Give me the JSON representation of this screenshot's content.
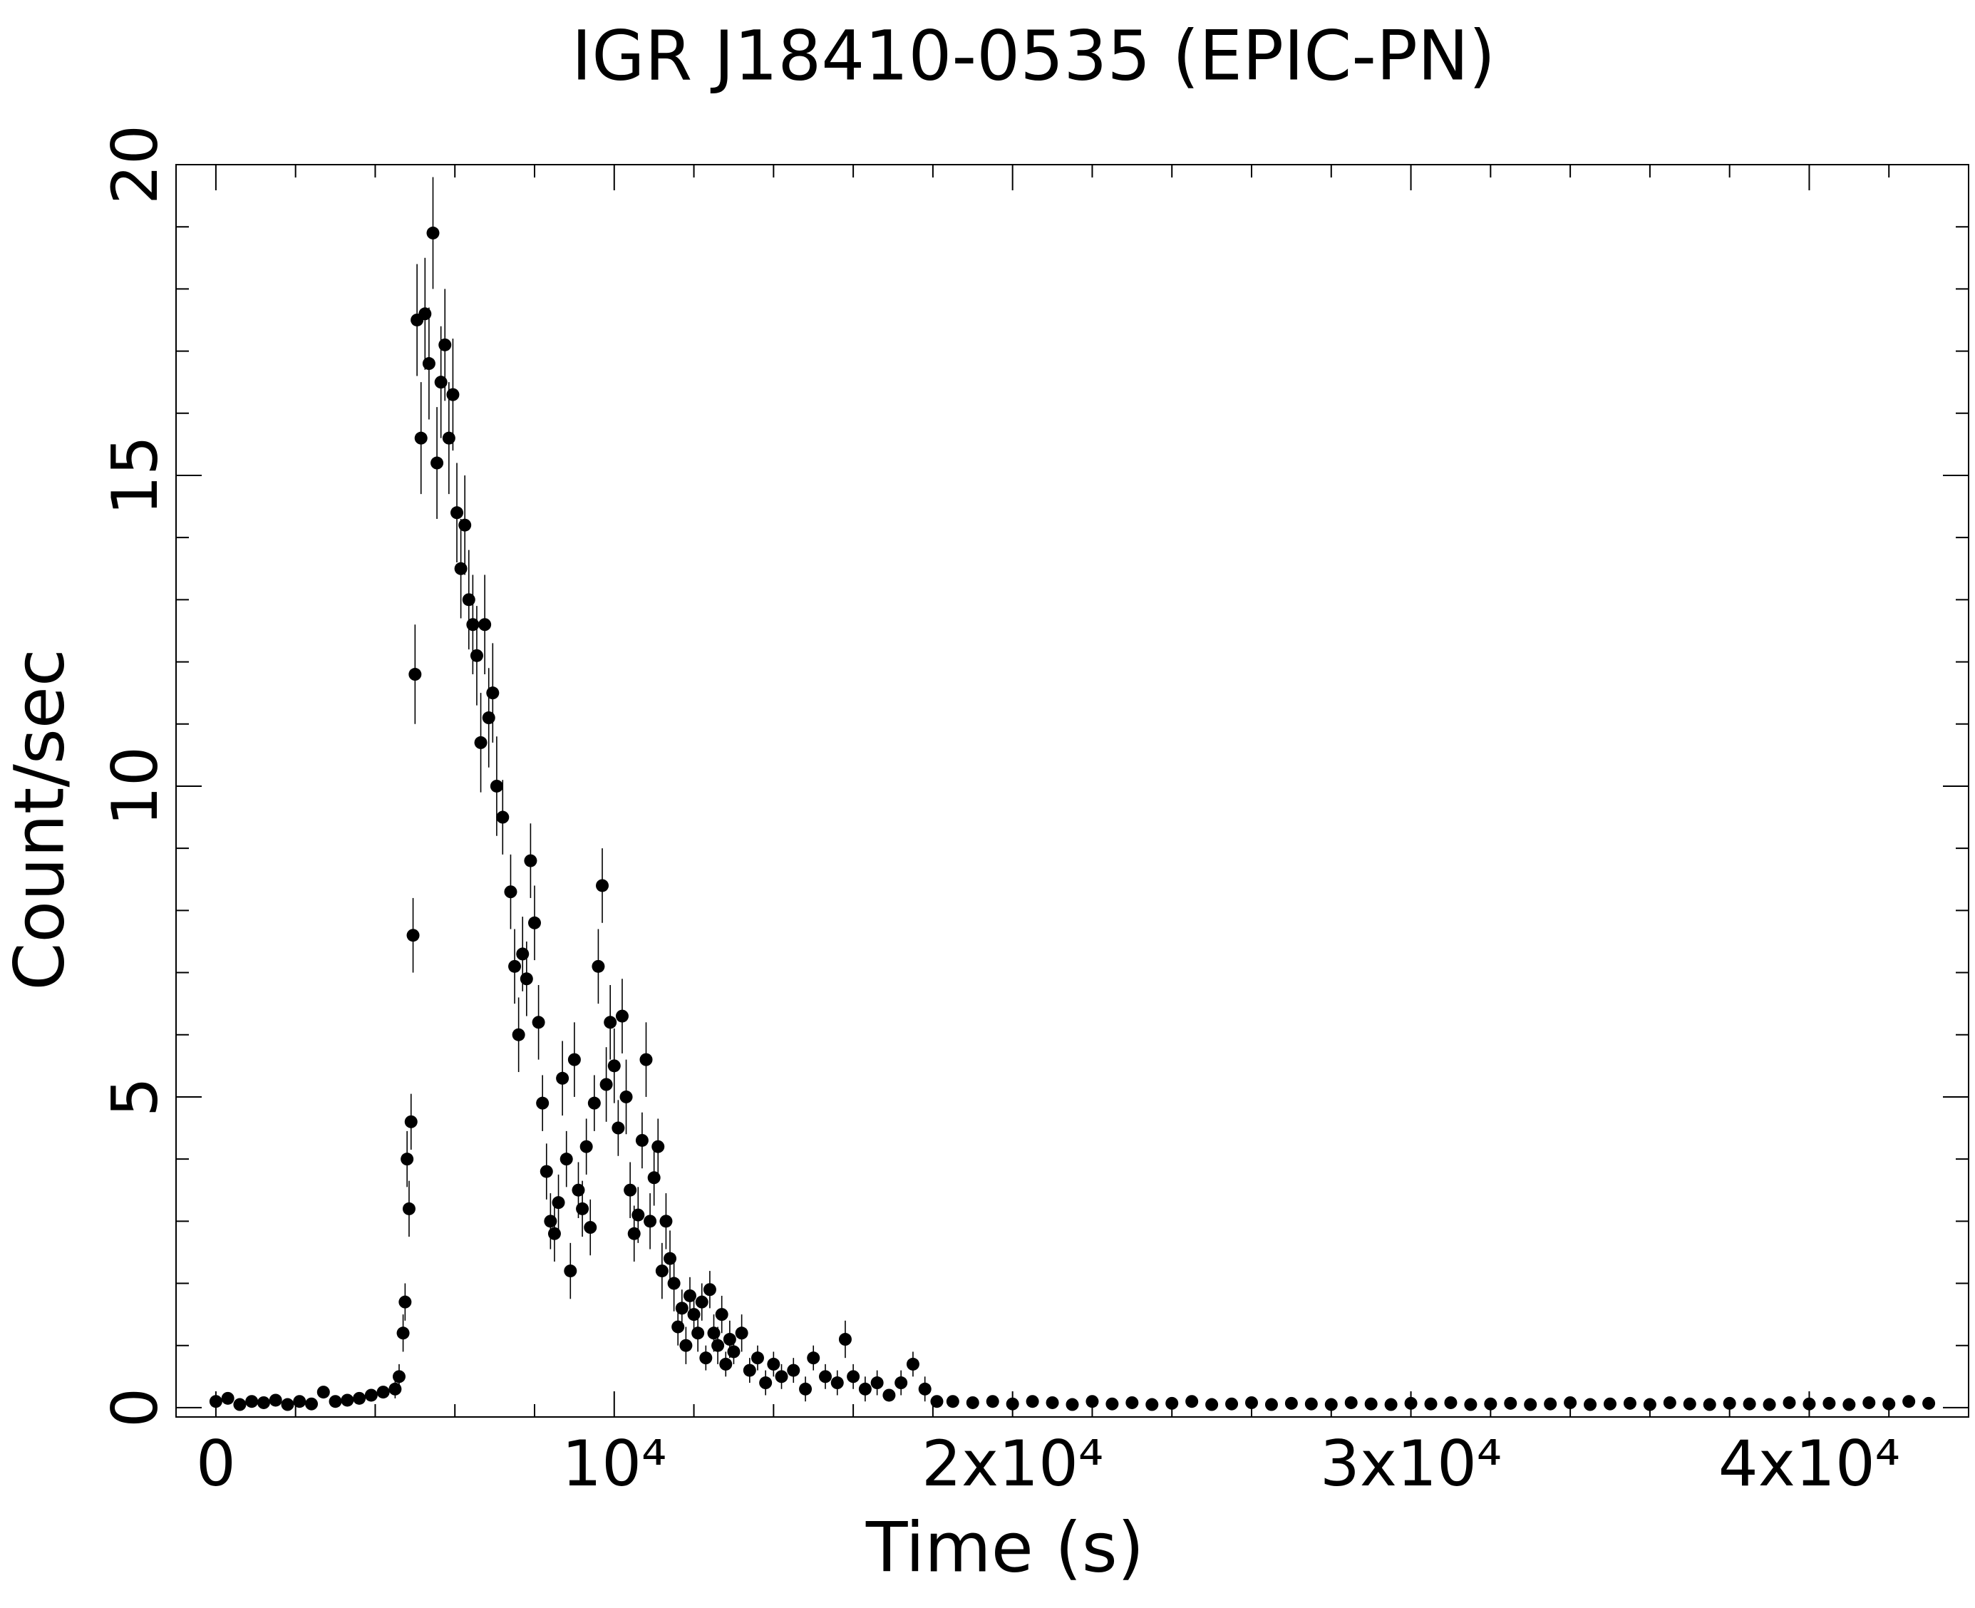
{
  "chart_data": {
    "type": "scatter",
    "title": "IGR J18410-0535 (EPIC-PN)",
    "xlabel": "Time (s)",
    "ylabel": "Count/sec",
    "color": "#000000",
    "xlim": [
      -1000,
      44000
    ],
    "ylim": [
      -0.15,
      20
    ],
    "xticks": [
      0,
      {
        "value": 10000,
        "label": "10⁴"
      },
      {
        "value": 20000,
        "label": "2x10⁴"
      },
      {
        "value": 30000,
        "label": "3x10⁴"
      },
      {
        "value": 40000,
        "label": "4x10⁴"
      }
    ],
    "yticks": [
      0,
      5,
      10,
      15,
      20
    ],
    "xminorticks": [
      2000,
      4000,
      6000,
      8000,
      12000,
      14000,
      16000,
      18000,
      22000,
      24000,
      26000,
      28000,
      32000,
      34000,
      36000,
      38000,
      42000
    ],
    "yminorticks": [
      1,
      2,
      3,
      4,
      6,
      7,
      8,
      9,
      11,
      12,
      13,
      14,
      16,
      17,
      18,
      19
    ],
    "x": [
      0,
      300,
      600,
      900,
      1200,
      1500,
      1800,
      2100,
      2400,
      2700,
      3000,
      3300,
      3600,
      3900,
      4200,
      4500,
      4600,
      4700,
      4750,
      4800,
      4850,
      4900,
      4950,
      5000,
      5050,
      5150,
      5250,
      5350,
      5450,
      5550,
      5650,
      5750,
      5850,
      5950,
      6050,
      6150,
      6250,
      6350,
      6450,
      6550,
      6650,
      6750,
      6850,
      6950,
      7050,
      7200,
      7400,
      7500,
      7600,
      7700,
      7800,
      7900,
      8000,
      8100,
      8200,
      8300,
      8400,
      8500,
      8600,
      8700,
      8800,
      8900,
      9000,
      9100,
      9200,
      9300,
      9400,
      9500,
      9600,
      9700,
      9800,
      9900,
      10000,
      10100,
      10200,
      10300,
      10400,
      10500,
      10600,
      10700,
      10800,
      10900,
      11000,
      11100,
      11200,
      11300,
      11400,
      11500,
      11600,
      11700,
      11800,
      11900,
      12000,
      12100,
      12200,
      12300,
      12400,
      12500,
      12600,
      12700,
      12800,
      12900,
      13000,
      13200,
      13400,
      13600,
      13800,
      14000,
      14200,
      14500,
      14800,
      15000,
      15300,
      15600,
      15800,
      16000,
      16300,
      16600,
      16900,
      17200,
      17500,
      17800,
      18100,
      18500,
      19000,
      19500,
      20000,
      20500,
      21000,
      21500,
      22000,
      22500,
      23000,
      23500,
      24000,
      24500,
      25000,
      25500,
      26000,
      26500,
      27000,
      27500,
      28000,
      28500,
      29000,
      29500,
      30000,
      30500,
      31000,
      31500,
      32000,
      32500,
      33000,
      33500,
      34000,
      34500,
      35000,
      35500,
      36000,
      36500,
      37000,
      37500,
      38000,
      38500,
      39000,
      39500,
      40000,
      40500,
      41000,
      41500,
      42000,
      42500,
      43000
    ],
    "values": [
      0.1,
      0.15,
      0.05,
      0.1,
      0.08,
      0.12,
      0.05,
      0.1,
      0.06,
      0.25,
      0.1,
      0.12,
      0.15,
      0.2,
      0.25,
      0.3,
      0.5,
      1.2,
      1.7,
      4.0,
      3.2,
      4.6,
      7.6,
      11.8,
      17.5,
      15.6,
      17.6,
      16.8,
      18.9,
      15.2,
      16.5,
      17.1,
      15.6,
      16.3,
      14.4,
      13.5,
      14.2,
      13.0,
      12.6,
      12.1,
      10.7,
      12.6,
      11.1,
      11.5,
      10.0,
      9.5,
      8.3,
      7.1,
      6.0,
      7.3,
      6.9,
      8.8,
      7.8,
      6.2,
      4.9,
      3.8,
      3.0,
      2.8,
      3.3,
      5.3,
      4.0,
      2.2,
      5.6,
      3.5,
      3.2,
      4.2,
      2.9,
      4.9,
      7.1,
      8.4,
      5.2,
      6.2,
      5.5,
      4.5,
      6.3,
      5.0,
      3.5,
      2.8,
      3.1,
      4.3,
      5.6,
      3.0,
      3.7,
      4.2,
      2.2,
      3.0,
      2.4,
      2.0,
      1.3,
      1.6,
      1.0,
      1.8,
      1.5,
      1.2,
      1.7,
      0.8,
      1.9,
      1.2,
      1.0,
      1.5,
      0.7,
      1.1,
      0.9,
      1.2,
      0.6,
      0.8,
      0.4,
      0.7,
      0.5,
      0.6,
      0.3,
      0.8,
      0.5,
      0.4,
      1.1,
      0.5,
      0.3,
      0.4,
      0.2,
      0.4,
      0.7,
      0.3,
      0.1,
      0.1,
      0.08,
      0.1,
      0.06,
      0.1,
      0.08,
      0.05,
      0.1,
      0.06,
      0.08,
      0.05,
      0.07,
      0.1,
      0.05,
      0.06,
      0.08,
      0.05,
      0.07,
      0.06,
      0.05,
      0.08,
      0.06,
      0.05,
      0.07,
      0.06,
      0.08,
      0.05,
      0.06,
      0.07,
      0.05,
      0.06,
      0.08,
      0.05,
      0.06,
      0.07,
      0.05,
      0.08,
      0.06,
      0.05,
      0.07,
      0.06,
      0.05,
      0.08,
      0.06,
      0.07,
      0.05,
      0.08,
      0.06,
      0.1,
      0.07
    ],
    "errors": [
      0.08,
      0.08,
      0.08,
      0.08,
      0.08,
      0.08,
      0.08,
      0.08,
      0.08,
      0.08,
      0.08,
      0.08,
      0.08,
      0.08,
      0.08,
      0.15,
      0.2,
      0.3,
      0.3,
      0.45,
      0.45,
      0.45,
      0.6,
      0.8,
      0.9,
      0.9,
      0.9,
      0.9,
      0.9,
      0.9,
      0.9,
      0.9,
      0.9,
      0.9,
      0.8,
      0.8,
      0.8,
      0.8,
      0.8,
      0.8,
      0.8,
      0.8,
      0.8,
      0.8,
      0.8,
      0.6,
      0.6,
      0.6,
      0.6,
      0.6,
      0.6,
      0.6,
      0.6,
      0.6,
      0.45,
      0.45,
      0.45,
      0.45,
      0.45,
      0.6,
      0.45,
      0.45,
      0.6,
      0.45,
      0.45,
      0.45,
      0.45,
      0.45,
      0.6,
      0.6,
      0.6,
      0.6,
      0.6,
      0.45,
      0.6,
      0.6,
      0.45,
      0.45,
      0.45,
      0.45,
      0.6,
      0.45,
      0.45,
      0.45,
      0.45,
      0.45,
      0.45,
      0.45,
      0.3,
      0.3,
      0.3,
      0.3,
      0.3,
      0.3,
      0.3,
      0.2,
      0.3,
      0.3,
      0.3,
      0.3,
      0.2,
      0.3,
      0.2,
      0.3,
      0.2,
      0.2,
      0.2,
      0.2,
      0.2,
      0.2,
      0.2,
      0.2,
      0.2,
      0.2,
      0.3,
      0.2,
      0.2,
      0.2,
      0.08,
      0.2,
      0.2,
      0.2,
      0.08,
      0.06,
      0.06,
      0.06,
      0.06,
      0.06,
      0.06,
      0.06,
      0.06,
      0.06,
      0.06,
      0.06,
      0.06,
      0.06,
      0.06,
      0.06,
      0.06,
      0.06,
      0.06,
      0.06,
      0.06,
      0.06,
      0.06,
      0.06,
      0.06,
      0.06,
      0.06,
      0.06,
      0.06,
      0.06,
      0.06,
      0.06,
      0.06,
      0.06,
      0.06,
      0.06,
      0.06,
      0.06,
      0.06,
      0.06,
      0.06,
      0.06,
      0.06,
      0.06,
      0.06,
      0.06,
      0.06,
      0.06,
      0.06,
      0.06,
      0.06
    ]
  }
}
